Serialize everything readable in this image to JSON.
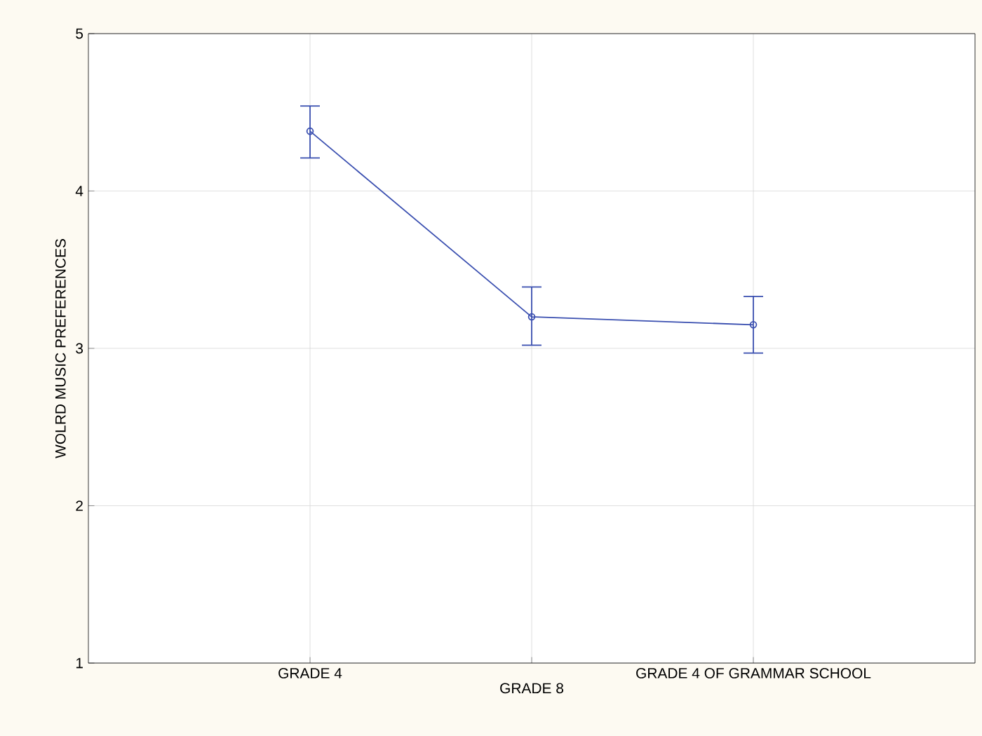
{
  "chart_data": {
    "type": "line",
    "ylabel": "WOLRD MUSIC PREFERENCES",
    "categories": [
      "GRADE 4",
      "GRADE 8",
      "GRADE 4 OF GRAMMAR SCHOOL"
    ],
    "series": [
      {
        "color": "#3a4fb0",
        "values": [
          4.38,
          3.2,
          3.15
        ],
        "errors": [
          [
            4.21,
            4.54
          ],
          [
            3.02,
            3.39
          ],
          [
            2.97,
            3.33
          ]
        ]
      }
    ],
    "ylim": [
      1,
      5
    ],
    "yticks": [
      1,
      2,
      3,
      4,
      5
    ],
    "grid": true,
    "marker": "circle",
    "line_style": "solid"
  }
}
